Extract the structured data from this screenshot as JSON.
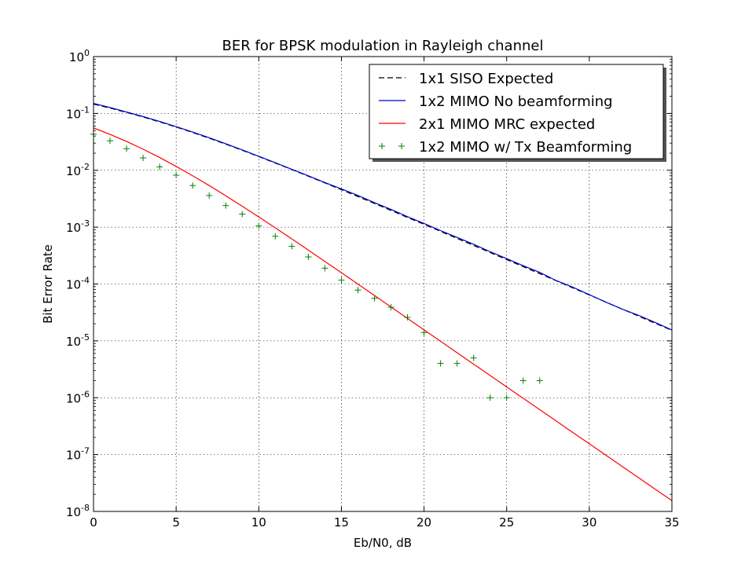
{
  "chart_data": {
    "type": "line",
    "title": "BER for BPSK modulation in Rayleigh channel",
    "xlabel": "Eb/N0, dB",
    "ylabel": "Bit Error Rate",
    "xlim": [
      0,
      35
    ],
    "ylim": [
      1e-08,
      1
    ],
    "yscale": "log",
    "grid": true,
    "legend_position": "top-right",
    "x_ticks": [
      0,
      5,
      10,
      15,
      20,
      25,
      30,
      35
    ],
    "y_ticks": [
      {
        "base": "10",
        "exp": "0",
        "value": 1
      },
      {
        "base": "10",
        "exp": "-1",
        "value": 0.1
      },
      {
        "base": "10",
        "exp": "-2",
        "value": 0.01
      },
      {
        "base": "10",
        "exp": "-3",
        "value": 0.001
      },
      {
        "base": "10",
        "exp": "-4",
        "value": 0.0001
      },
      {
        "base": "10",
        "exp": "-5",
        "value": 1e-05
      },
      {
        "base": "10",
        "exp": "-6",
        "value": 1e-06
      },
      {
        "base": "10",
        "exp": "-7",
        "value": 1e-07
      },
      {
        "base": "10",
        "exp": "-8",
        "value": 1e-08
      }
    ],
    "series": [
      {
        "name": "1x1 SISO Expected",
        "style": "dashed",
        "color": "#000000",
        "x": [
          0,
          1,
          2,
          3,
          4,
          5,
          6,
          7,
          8,
          9,
          10,
          11,
          12,
          13,
          14,
          15,
          16,
          17,
          18,
          19,
          20,
          21,
          22,
          23,
          24,
          25,
          26,
          27,
          28,
          29,
          30,
          31,
          32,
          33,
          34,
          35
        ],
        "y": [
          0.146,
          0.124,
          0.104,
          0.0865,
          0.071,
          0.0576,
          0.0462,
          0.0366,
          0.0288,
          0.0225,
          0.0174,
          0.0134,
          0.0103,
          0.00787,
          0.00599,
          0.00455,
          0.00345,
          0.00261,
          0.00197,
          0.00148,
          0.00112,
          0.000842,
          0.000634,
          0.000477,
          0.000358,
          0.000269,
          0.000202,
          0.000152,
          0.000114,
          8.55e-05,
          6.42e-05,
          4.82e-05,
          3.61e-05,
          2.71e-05,
          2.03e-05,
          1.53e-05
        ]
      },
      {
        "name": "1x2 MIMO No beamforming",
        "style": "solid",
        "color": "#0000cc",
        "x": [
          0,
          1,
          2,
          3,
          4,
          5,
          6,
          7,
          8,
          9,
          10,
          11,
          12,
          13,
          14,
          15,
          16,
          17,
          18,
          19,
          20,
          21,
          22,
          23,
          24,
          25,
          26,
          27,
          28,
          29,
          30,
          31,
          32,
          33,
          34,
          35
        ],
        "y": [
          0.15,
          0.127,
          0.106,
          0.088,
          0.0722,
          0.0586,
          0.047,
          0.0373,
          0.0293,
          0.0228,
          0.0176,
          0.0136,
          0.0104,
          0.008,
          0.0061,
          0.0047,
          0.0036,
          0.0027,
          0.00205,
          0.00153,
          0.00116,
          0.00087,
          0.00066,
          0.0005,
          0.00037,
          0.00028,
          0.00021,
          0.00016,
          0.000115,
          8.8e-05,
          6.5e-05,
          4.8e-05,
          3.6e-05,
          2.8e-05,
          2.1e-05,
          1.55e-05
        ]
      },
      {
        "name": "2x1 MIMO MRC expected",
        "style": "solid",
        "color": "#ff0000",
        "x": [
          0,
          1,
          2,
          3,
          4,
          5,
          6,
          7,
          8,
          9,
          10,
          11,
          12,
          13,
          14,
          15,
          16,
          17,
          18,
          19,
          20,
          21,
          22,
          23,
          24,
          25,
          26,
          27,
          28,
          29,
          30,
          31,
          32,
          33,
          34,
          35
        ],
        "y": [
          0.0557,
          0.0428,
          0.0321,
          0.0235,
          0.0168,
          0.0117,
          0.00801,
          0.00539,
          0.00357,
          0.00233,
          0.00151,
          0.000972,
          0.000621,
          0.000395,
          0.00025,
          0.000158,
          9.97e-05,
          6.28e-05,
          3.95e-05,
          2.48e-05,
          1.56e-05,
          9.83e-06,
          6.19e-06,
          3.9e-06,
          2.46e-06,
          1.55e-06,
          9.78e-07,
          6.17e-07,
          3.89e-07,
          2.45e-07,
          1.55e-07,
          9.77e-08,
          6.16e-08,
          3.89e-08,
          2.45e-08,
          1.55e-08
        ]
      },
      {
        "name": "1x2 MIMO w/ Tx Beamforming",
        "style": "markers",
        "marker": "+",
        "color": "#008000",
        "x": [
          0,
          1,
          2,
          3,
          4,
          5,
          6,
          7,
          8,
          9,
          10,
          11,
          12,
          13,
          14,
          15,
          16,
          17,
          18,
          19,
          20,
          21,
          22,
          23,
          24,
          25,
          26,
          27
        ],
        "y": [
          0.043,
          0.033,
          0.024,
          0.0165,
          0.0115,
          0.0082,
          0.0054,
          0.0036,
          0.0024,
          0.0017,
          0.00105,
          0.00069,
          0.00046,
          0.0003,
          0.00019,
          0.000117,
          7.8e-05,
          5.6e-05,
          3.9e-05,
          2.6e-05,
          1.4e-05,
          4e-06,
          4e-06,
          5e-06,
          1e-06,
          1e-06,
          2e-06,
          2e-06
        ]
      }
    ]
  }
}
